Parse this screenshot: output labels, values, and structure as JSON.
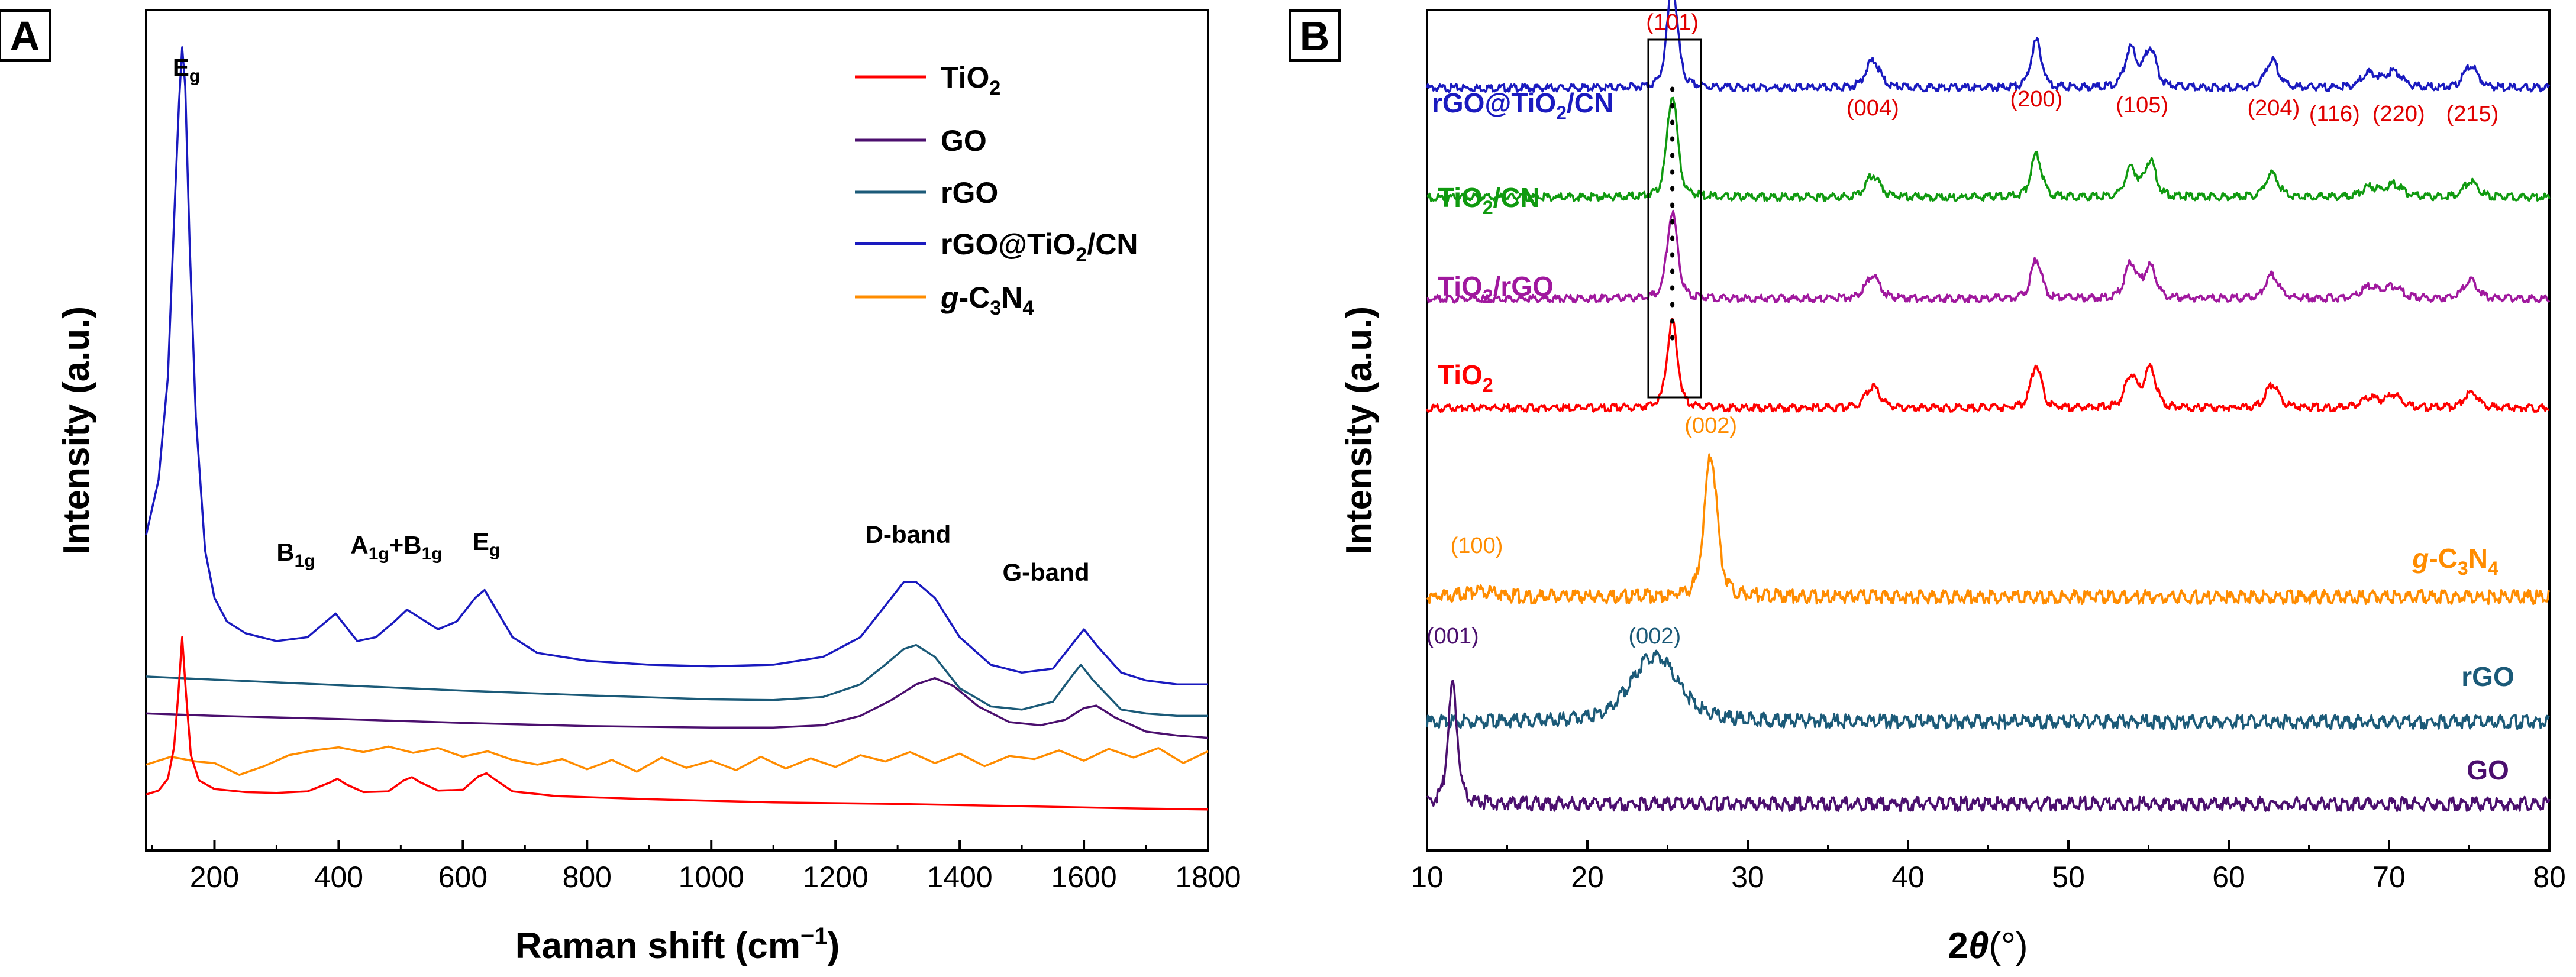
{
  "colors": {
    "TiO2": "#ff0000",
    "GO": "#4b0f6e",
    "rGO": "#1b5a78",
    "rGO@TiO2/CN": "#1a1abf",
    "g-C3N4": "#ff8c00",
    "TiO2/CN": "#109a10",
    "TiO2/rGO": "#a0189e",
    "peak_text": "#e00000"
  },
  "chart_data": [
    {
      "panel": "A",
      "type": "line",
      "title": "",
      "xlabel": "Raman shift (cm⁻¹)",
      "ylabel": "Intensity (a.u.)",
      "xlim": [
        90,
        1800
      ],
      "ylim": [
        0,
        100
      ],
      "xticks": [
        200,
        400,
        600,
        800,
        1000,
        1200,
        1400,
        1600,
        1800
      ],
      "grid": false,
      "legend_position": "top-right",
      "legend": [
        {
          "label": "TiO₂",
          "series": "TiO2"
        },
        {
          "label": "GO",
          "series": "GO"
        },
        {
          "label": "rGO",
          "series": "rGO"
        },
        {
          "label": "rGO@TiO₂/CN",
          "series": "rGO@TiO2/CN"
        },
        {
          "label": "g-C₃N₄",
          "series": "g-C3N4"
        }
      ],
      "annotations": [
        {
          "text": "Eg",
          "x": 148,
          "y": 99.5
        },
        {
          "text": "B1g",
          "x": 340,
          "y": 32
        },
        {
          "text": "A1g+B1g",
          "x": 500,
          "y": 32
        },
        {
          "text": "Eg",
          "x": 635,
          "y": 33
        },
        {
          "text": "D-band",
          "x": 1320,
          "y": 33.5
        },
        {
          "text": "G-band",
          "x": 1590,
          "y": 29.5
        }
      ],
      "series": [
        {
          "name": "rGO@TiO2/CN",
          "x": [
            90,
            110,
            125,
            135,
            143,
            148,
            153,
            160,
            170,
            185,
            200,
            220,
            250,
            300,
            350,
            380,
            395,
            410,
            430,
            460,
            490,
            510,
            530,
            560,
            590,
            620,
            635,
            650,
            680,
            720,
            800,
            900,
            1000,
            1100,
            1180,
            1240,
            1280,
            1310,
            1330,
            1360,
            1400,
            1450,
            1500,
            1550,
            1580,
            1600,
            1620,
            1660,
            1700,
            1750,
            1800
          ],
          "y": [
            35,
            42,
            55,
            75,
            90,
            97,
            92,
            72,
            50,
            33,
            27,
            24,
            22.5,
            21.5,
            22,
            24,
            25,
            23.5,
            21.5,
            22,
            24,
            25.5,
            24.5,
            23,
            24,
            27,
            28,
            26,
            22,
            20,
            19,
            18.5,
            18.3,
            18.5,
            19.5,
            22,
            26,
            29,
            29,
            27,
            22,
            18.5,
            17.5,
            18,
            21,
            23,
            21,
            17.5,
            16.5,
            16,
            16
          ]
        },
        {
          "name": "rGO",
          "x": [
            90,
            200,
            400,
            600,
            800,
            1000,
            1100,
            1180,
            1240,
            1280,
            1310,
            1330,
            1360,
            1400,
            1450,
            1500,
            1550,
            1580,
            1595,
            1615,
            1660,
            1700,
            1750,
            1800
          ],
          "y": [
            17,
            16.6,
            15.9,
            15.2,
            14.6,
            14.1,
            14,
            14.4,
            16,
            18.5,
            20.5,
            21,
            19.5,
            15.5,
            13.2,
            12.8,
            13.8,
            17,
            18.5,
            16.5,
            12.8,
            12.3,
            12,
            12
          ]
        },
        {
          "name": "GO",
          "x": [
            90,
            200,
            400,
            600,
            800,
            1000,
            1100,
            1180,
            1240,
            1290,
            1330,
            1360,
            1390,
            1430,
            1480,
            1530,
            1570,
            1600,
            1620,
            1650,
            1700,
            1750,
            1800
          ],
          "y": [
            12.3,
            12,
            11.6,
            11.1,
            10.7,
            10.5,
            10.5,
            10.8,
            12,
            14,
            16,
            16.8,
            15.8,
            13.2,
            11.2,
            10.8,
            11.5,
            13,
            13.3,
            11.8,
            10,
            9.5,
            9.2
          ]
        },
        {
          "name": "g-C3N4",
          "x": [
            90,
            110,
            130,
            150,
            170,
            200,
            240,
            280,
            320,
            360,
            400,
            440,
            480,
            520,
            560,
            600,
            640,
            680,
            720,
            760,
            800,
            840,
            880,
            920,
            960,
            1000,
            1040,
            1080,
            1120,
            1160,
            1200,
            1240,
            1280,
            1320,
            1360,
            1400,
            1440,
            1480,
            1520,
            1560,
            1600,
            1640,
            1680,
            1720,
            1760,
            1800
          ],
          "y": [
            5.8,
            6.3,
            6.8,
            6.5,
            6.2,
            6,
            4.5,
            5.6,
            7,
            7.6,
            8,
            7.4,
            8.1,
            7.3,
            7.9,
            6.8,
            7.5,
            6.4,
            5.8,
            6.5,
            5.2,
            6.4,
            4.9,
            6.7,
            5.4,
            6.3,
            5.1,
            6.8,
            5.3,
            6.6,
            5.5,
            7,
            6.2,
            7.4,
            6,
            7.2,
            5.6,
            6.9,
            6.5,
            7.6,
            6.3,
            7.8,
            6.7,
            7.9,
            6,
            7.5
          ]
        },
        {
          "name": "TiO2",
          "x": [
            90,
            110,
            125,
            135,
            142,
            148,
            154,
            162,
            175,
            200,
            250,
            300,
            350,
            385,
            398,
            412,
            440,
            480,
            505,
            518,
            530,
            560,
            600,
            625,
            638,
            650,
            680,
            750,
            900,
            1100,
            1300,
            1500,
            1700,
            1800
          ],
          "y": [
            2,
            2.5,
            4,
            8,
            15,
            22,
            15,
            7,
            3.8,
            2.7,
            2.3,
            2.2,
            2.4,
            3.5,
            4,
            3.3,
            2.3,
            2.4,
            3.8,
            4.2,
            3.6,
            2.5,
            2.6,
            4.3,
            4.7,
            4,
            2.4,
            1.8,
            1.4,
            1,
            0.8,
            0.5,
            0.2,
            0.1
          ]
        }
      ]
    },
    {
      "panel": "B",
      "type": "line",
      "title": "",
      "xlabel": "2θ(°)",
      "ylabel": "Intensity (a.u.)",
      "xlim": [
        10,
        80
      ],
      "ylim": [
        0,
        100
      ],
      "xticks": [
        10,
        20,
        30,
        40,
        50,
        60,
        70,
        80
      ],
      "grid": false,
      "highlight_box": {
        "x": [
          23.8,
          27.1
        ],
        "label": "(101)"
      },
      "sample_labels": [
        {
          "text": "rGO@TiO₂/CN",
          "series": "rGO@TiO2/CN"
        },
        {
          "text": "TiO₂/CN",
          "series": "TiO2/CN"
        },
        {
          "text": "TiO₂/rGO",
          "series": "TiO2/rGO"
        },
        {
          "text": "TiO₂",
          "series": "TiO2"
        },
        {
          "text": "g-C₃N₄",
          "series": "g-C3N4"
        },
        {
          "text": "rGO",
          "series": "rGO"
        },
        {
          "text": "GO",
          "series": "GO"
        }
      ],
      "peak_labels": [
        {
          "text": "(101)",
          "x": 25.3,
          "color": "peak_text"
        },
        {
          "text": "(004)",
          "x": 37.8,
          "color": "peak_text"
        },
        {
          "text": "(200)",
          "x": 48.0,
          "color": "peak_text"
        },
        {
          "text": "(105)",
          "x": 54.6,
          "color": "peak_text"
        },
        {
          "text": "(204)",
          "x": 62.8,
          "color": "peak_text"
        },
        {
          "text": "(116)",
          "x": 66.6,
          "color": "peak_text"
        },
        {
          "text": "(220)",
          "x": 70.6,
          "color": "peak_text"
        },
        {
          "text": "(215)",
          "x": 75.2,
          "color": "peak_text"
        },
        {
          "text": "(002)",
          "x": 27.7,
          "color": "g-C3N4"
        },
        {
          "text": "(100)",
          "x": 13.1,
          "color": "g-C3N4"
        },
        {
          "text": "(002)",
          "x": 24.2,
          "color": "rGO"
        },
        {
          "text": "(001)",
          "x": 11.6,
          "color": "GO"
        }
      ],
      "peak_positions": [
        25.3,
        37.8,
        48.0,
        53.9,
        55.1,
        62.7,
        68.8,
        70.3,
        75.1
      ],
      "series": [
        {
          "name": "rGO@TiO2/CN",
          "baseline": 92,
          "heights": [
            13,
            3.5,
            6,
            5,
            5,
            3.5,
            1.8,
            2,
            2.8
          ]
        },
        {
          "name": "TiO2/CN",
          "baseline": 78,
          "heights": [
            13,
            2.8,
            5.5,
            3.5,
            4.5,
            3,
            1.2,
            1.6,
            2
          ]
        },
        {
          "name": "TiO2/rGO",
          "baseline": 65,
          "heights": [
            11,
            3,
            5,
            4.5,
            4,
            3,
            1.5,
            1.5,
            2.3
          ]
        },
        {
          "name": "TiO2",
          "baseline": 51,
          "heights": [
            11,
            2.8,
            5.5,
            4,
            5,
            3,
            1.2,
            1.6,
            2
          ]
        },
        {
          "name": "g-C3N4",
          "baseline": 27,
          "peaks": [
            {
              "x": 27.7,
              "h": 18,
              "w": 0.55
            },
            {
              "x": 13.1,
              "h": 0.7,
              "w": 1.5
            }
          ]
        },
        {
          "name": "rGO",
          "baseline": 11,
          "peaks": [
            {
              "x": 24.2,
              "h": 8.5,
              "w": 2.0
            }
          ]
        },
        {
          "name": "GO",
          "baseline": 0.5,
          "peaks": [
            {
              "x": 11.6,
              "h": 15,
              "w": 0.4
            }
          ]
        }
      ]
    }
  ],
  "panels": {
    "A": {
      "letter": "A",
      "annot_eg_top": "E",
      "annot_eg_top_sub": "g",
      "annot_b1g": "B",
      "annot_b1g_sub": "1g",
      "annot_a1g": "A",
      "annot_a1g_sub": "1g",
      "annot_plus": "+B",
      "annot_plus_sub": "1g",
      "annot_eg2": "E",
      "annot_eg2_sub": "g",
      "annot_dband": "D-band",
      "annot_gband": "G-band",
      "legend_TiO2": "TiO",
      "legend_TiO2_sub": "2",
      "legend_GO": "GO",
      "legend_rGO": "rGO",
      "legend_comp_a": "rGO@TiO",
      "legend_comp_sub": "2",
      "legend_comp_b": "/CN",
      "legend_gcn_g": "g",
      "legend_gcn_c": "-C",
      "legend_gcn_sub1": "3",
      "legend_gcn_n": "N",
      "legend_gcn_sub2": "4",
      "xlabel_main": "Raman shift (cm",
      "xlabel_sup": "−1",
      "xlabel_end": ")",
      "ylabel": "Intensity (a.u.)"
    },
    "B": {
      "letter": "B",
      "xlabel_main": "2",
      "xlabel_theta": "θ",
      "xlabel_unit": "(°)",
      "ylabel": "Intensity (a.u.)",
      "label_comp_a": "rGO@TiO",
      "label_comp_sub": "2",
      "label_comp_b": "/CN",
      "label_ticn_a": "TiO",
      "label_ticn_sub": "2",
      "label_ticn_b": "/CN",
      "label_tirgo_a": "TiO",
      "label_tirgo_sub": "2",
      "label_tirgo_b": "/rGO",
      "label_tio2": "TiO",
      "label_tio2_sub": "2",
      "label_gcn_g": "g",
      "label_gcn_c": "-C",
      "label_gcn_sub1": "3",
      "label_gcn_n": "N",
      "label_gcn_sub2": "4",
      "label_rgo": "rGO",
      "label_go": "GO"
    }
  }
}
